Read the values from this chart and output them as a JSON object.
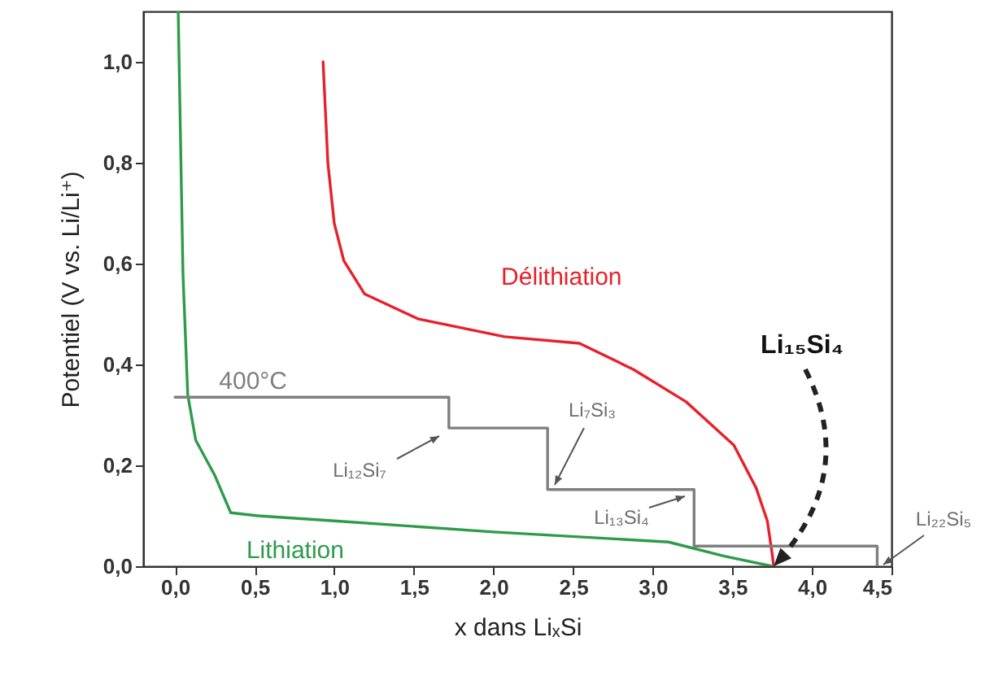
{
  "chart_data": {
    "type": "line",
    "xlabel": "x dans LiₓSi",
    "ylabel": "Potentiel (V vs. Li/Li⁺)",
    "xlim": [
      -0.2,
      4.5
    ],
    "ylim": [
      0,
      1.1
    ],
    "xticks": [
      {
        "value": 0,
        "label": "0,0"
      },
      {
        "value": 0.5,
        "label": "0,5"
      },
      {
        "value": 1,
        "label": "1,0"
      },
      {
        "value": 1.5,
        "label": "1,5"
      },
      {
        "value": 2,
        "label": "2,0"
      },
      {
        "value": 2.5,
        "label": "2,5"
      },
      {
        "value": 3,
        "label": "3,0"
      },
      {
        "value": 3.5,
        "label": "3,5"
      },
      {
        "value": 4,
        "label": "4,0"
      },
      {
        "value": 4.5,
        "label": "4,5"
      }
    ],
    "yticks": [
      {
        "value": 0,
        "label": "0,0"
      },
      {
        "value": 0.2,
        "label": "0,2"
      },
      {
        "value": 0.4,
        "label": "0,4"
      },
      {
        "value": 0.6,
        "label": "0,6"
      },
      {
        "value": 0.8,
        "label": "0,8"
      },
      {
        "value": 1,
        "label": "1,0"
      }
    ],
    "series": [
      {
        "name": "Délithiation",
        "color": "#e8202a",
        "x": [
          0.93,
          0.96,
          1.0,
          1.06,
          1.19,
          1.53,
          2.07,
          2.54,
          2.88,
          3.21,
          3.51,
          3.65,
          3.72,
          3.75,
          3.76
        ],
        "values": [
          1.0,
          0.8,
          0.68,
          0.606,
          0.54,
          0.49,
          0.455,
          0.442,
          0.39,
          0.326,
          0.24,
          0.155,
          0.09,
          0.026,
          0.0
        ]
      },
      {
        "name": "Lithiation",
        "color": "#2e9b4a",
        "x": [
          0.02,
          0.05,
          0.08,
          0.13,
          0.25,
          0.35,
          0.52,
          1.0,
          2.0,
          3.1,
          3.45,
          3.75
        ],
        "values": [
          1.1,
          0.58,
          0.34,
          0.25,
          0.18,
          0.106,
          0.1,
          0.09,
          0.068,
          0.048,
          0.02,
          0.0
        ]
      },
      {
        "name": "400°C",
        "color": "#7f7f7f",
        "x": [
          0.0,
          1.72,
          1.72,
          2.34,
          2.34,
          3.26,
          3.26,
          4.41,
          4.41
        ],
        "values": [
          0.335,
          0.335,
          0.274,
          0.274,
          0.152,
          0.152,
          0.04,
          0.04,
          0.0
        ]
      }
    ],
    "annotations": [
      "Li₁₂Si₇",
      "Li₇Si₃",
      "Li₁₃Si₄",
      "Li₂₂Si₅",
      {
        "text": "Li₁₅Si₄",
        "x": 3.76,
        "y": 0.0
      }
    ]
  }
}
